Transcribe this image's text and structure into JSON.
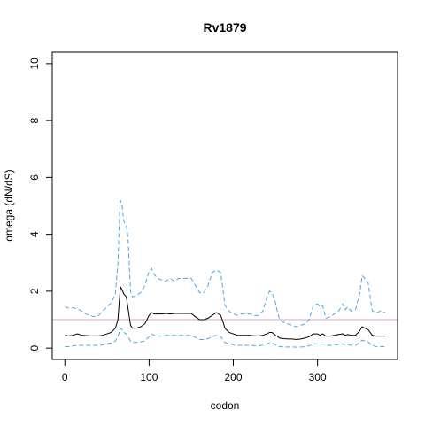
{
  "chart_data": {
    "type": "line",
    "title": "Rv1879",
    "xlabel": "codon",
    "ylabel": "omega (dN/dS)",
    "xlim": [
      -15,
      395
    ],
    "ylim": [
      -0.4,
      10.4
    ],
    "x_ticks": [
      0,
      100,
      200,
      300
    ],
    "y_ticks": [
      0,
      2,
      4,
      6,
      8,
      10
    ],
    "grid": false,
    "reference_line": {
      "y": 1,
      "color": "#d8a0c8"
    },
    "series": [
      {
        "style": "dashed",
        "color": "#4aa8e0",
        "points": [
          [
            0,
            1.45
          ],
          [
            5,
            1.4
          ],
          [
            10,
            1.42
          ],
          [
            15,
            1.38
          ],
          [
            20,
            1.3
          ],
          [
            25,
            1.2
          ],
          [
            30,
            1.15
          ],
          [
            35,
            1.1
          ],
          [
            40,
            1.15
          ],
          [
            45,
            1.3
          ],
          [
            50,
            1.45
          ],
          [
            55,
            1.6
          ],
          [
            60,
            1.9
          ],
          [
            63,
            3.0
          ],
          [
            65,
            4.8
          ],
          [
            66,
            5.2
          ],
          [
            68,
            5.0
          ],
          [
            70,
            4.45
          ],
          [
            73,
            4.3
          ],
          [
            75,
            3.9
          ],
          [
            78,
            2.0
          ],
          [
            80,
            1.8
          ],
          [
            85,
            1.85
          ],
          [
            90,
            1.95
          ],
          [
            95,
            2.2
          ],
          [
            100,
            2.7
          ],
          [
            103,
            2.8
          ],
          [
            106,
            2.6
          ],
          [
            110,
            2.45
          ],
          [
            115,
            2.4
          ],
          [
            120,
            2.35
          ],
          [
            125,
            2.45
          ],
          [
            130,
            2.35
          ],
          [
            135,
            2.45
          ],
          [
            140,
            2.45
          ],
          [
            145,
            2.45
          ],
          [
            150,
            2.45
          ],
          [
            155,
            2.2
          ],
          [
            160,
            1.95
          ],
          [
            165,
            1.95
          ],
          [
            170,
            2.2
          ],
          [
            175,
            2.65
          ],
          [
            180,
            2.75
          ],
          [
            185,
            2.65
          ],
          [
            188,
            2.0
          ],
          [
            190,
            1.5
          ],
          [
            195,
            1.3
          ],
          [
            200,
            1.2
          ],
          [
            205,
            1.15
          ],
          [
            210,
            1.2
          ],
          [
            215,
            1.2
          ],
          [
            220,
            1.2
          ],
          [
            225,
            1.15
          ],
          [
            230,
            1.15
          ],
          [
            235,
            1.3
          ],
          [
            240,
            1.8
          ],
          [
            243,
            2.0
          ],
          [
            246,
            1.95
          ],
          [
            250,
            1.6
          ],
          [
            253,
            1.2
          ],
          [
            255,
            1.0
          ],
          [
            260,
            0.9
          ],
          [
            265,
            0.85
          ],
          [
            270,
            0.8
          ],
          [
            275,
            0.75
          ],
          [
            280,
            0.8
          ],
          [
            285,
            0.85
          ],
          [
            290,
            1.0
          ],
          [
            295,
            1.5
          ],
          [
            300,
            1.55
          ],
          [
            303,
            1.45
          ],
          [
            306,
            1.5
          ],
          [
            310,
            1.05
          ],
          [
            315,
            1.1
          ],
          [
            320,
            1.2
          ],
          [
            325,
            1.3
          ],
          [
            330,
            1.55
          ],
          [
            333,
            1.35
          ],
          [
            336,
            1.45
          ],
          [
            340,
            1.3
          ],
          [
            345,
            1.35
          ],
          [
            350,
            1.9
          ],
          [
            353,
            2.55
          ],
          [
            356,
            2.45
          ],
          [
            360,
            2.3
          ],
          [
            365,
            1.3
          ],
          [
            370,
            1.25
          ],
          [
            375,
            1.3
          ],
          [
            380,
            1.25
          ]
        ]
      },
      {
        "style": "solid",
        "color": "#000000",
        "points": [
          [
            0,
            0.45
          ],
          [
            5,
            0.43
          ],
          [
            10,
            0.45
          ],
          [
            15,
            0.5
          ],
          [
            20,
            0.45
          ],
          [
            25,
            0.44
          ],
          [
            30,
            0.43
          ],
          [
            35,
            0.43
          ],
          [
            40,
            0.43
          ],
          [
            45,
            0.45
          ],
          [
            50,
            0.5
          ],
          [
            55,
            0.55
          ],
          [
            60,
            0.7
          ],
          [
            63,
            1.0
          ],
          [
            65,
            1.8
          ],
          [
            66,
            2.15
          ],
          [
            68,
            2.05
          ],
          [
            70,
            1.9
          ],
          [
            73,
            1.8
          ],
          [
            75,
            1.4
          ],
          [
            78,
            0.8
          ],
          [
            80,
            0.7
          ],
          [
            85,
            0.7
          ],
          [
            90,
            0.75
          ],
          [
            95,
            0.85
          ],
          [
            100,
            1.15
          ],
          [
            103,
            1.25
          ],
          [
            106,
            1.2
          ],
          [
            110,
            1.2
          ],
          [
            115,
            1.2
          ],
          [
            120,
            1.22
          ],
          [
            125,
            1.2
          ],
          [
            130,
            1.22
          ],
          [
            135,
            1.22
          ],
          [
            140,
            1.22
          ],
          [
            145,
            1.22
          ],
          [
            150,
            1.22
          ],
          [
            155,
            1.1
          ],
          [
            160,
            1.0
          ],
          [
            165,
            1.0
          ],
          [
            170,
            1.05
          ],
          [
            175,
            1.15
          ],
          [
            180,
            1.25
          ],
          [
            185,
            1.15
          ],
          [
            188,
            0.9
          ],
          [
            190,
            0.7
          ],
          [
            195,
            0.55
          ],
          [
            200,
            0.5
          ],
          [
            205,
            0.45
          ],
          [
            210,
            0.45
          ],
          [
            215,
            0.45
          ],
          [
            220,
            0.45
          ],
          [
            225,
            0.43
          ],
          [
            230,
            0.43
          ],
          [
            235,
            0.45
          ],
          [
            240,
            0.5
          ],
          [
            243,
            0.55
          ],
          [
            246,
            0.55
          ],
          [
            250,
            0.45
          ],
          [
            253,
            0.4
          ],
          [
            255,
            0.35
          ],
          [
            260,
            0.33
          ],
          [
            265,
            0.32
          ],
          [
            270,
            0.32
          ],
          [
            275,
            0.3
          ],
          [
            280,
            0.32
          ],
          [
            285,
            0.35
          ],
          [
            290,
            0.4
          ],
          [
            295,
            0.5
          ],
          [
            300,
            0.5
          ],
          [
            303,
            0.45
          ],
          [
            306,
            0.5
          ],
          [
            310,
            0.42
          ],
          [
            315,
            0.42
          ],
          [
            320,
            0.45
          ],
          [
            325,
            0.48
          ],
          [
            330,
            0.5
          ],
          [
            333,
            0.45
          ],
          [
            336,
            0.48
          ],
          [
            340,
            0.45
          ],
          [
            345,
            0.45
          ],
          [
            350,
            0.6
          ],
          [
            353,
            0.75
          ],
          [
            356,
            0.7
          ],
          [
            360,
            0.65
          ],
          [
            365,
            0.45
          ],
          [
            370,
            0.42
          ],
          [
            375,
            0.42
          ],
          [
            380,
            0.42
          ]
        ]
      },
      {
        "style": "dashed",
        "color": "#4aa8e0",
        "points": [
          [
            0,
            0.05
          ],
          [
            5,
            0.05
          ],
          [
            10,
            0.08
          ],
          [
            15,
            0.1
          ],
          [
            20,
            0.1
          ],
          [
            25,
            0.1
          ],
          [
            30,
            0.1
          ],
          [
            35,
            0.1
          ],
          [
            40,
            0.1
          ],
          [
            45,
            0.12
          ],
          [
            50,
            0.15
          ],
          [
            55,
            0.18
          ],
          [
            60,
            0.25
          ],
          [
            63,
            0.4
          ],
          [
            65,
            0.6
          ],
          [
            66,
            0.7
          ],
          [
            68,
            0.65
          ],
          [
            70,
            0.55
          ],
          [
            73,
            0.5
          ],
          [
            75,
            0.4
          ],
          [
            78,
            0.25
          ],
          [
            80,
            0.2
          ],
          [
            85,
            0.2
          ],
          [
            90,
            0.22
          ],
          [
            95,
            0.25
          ],
          [
            100,
            0.4
          ],
          [
            103,
            0.5
          ],
          [
            106,
            0.45
          ],
          [
            110,
            0.42
          ],
          [
            115,
            0.42
          ],
          [
            120,
            0.45
          ],
          [
            125,
            0.45
          ],
          [
            130,
            0.45
          ],
          [
            135,
            0.45
          ],
          [
            140,
            0.45
          ],
          [
            145,
            0.45
          ],
          [
            150,
            0.45
          ],
          [
            155,
            0.38
          ],
          [
            160,
            0.3
          ],
          [
            165,
            0.3
          ],
          [
            170,
            0.33
          ],
          [
            175,
            0.4
          ],
          [
            180,
            0.45
          ],
          [
            185,
            0.4
          ],
          [
            188,
            0.28
          ],
          [
            190,
            0.2
          ],
          [
            195,
            0.15
          ],
          [
            200,
            0.12
          ],
          [
            205,
            0.1
          ],
          [
            210,
            0.1
          ],
          [
            215,
            0.1
          ],
          [
            220,
            0.1
          ],
          [
            225,
            0.08
          ],
          [
            230,
            0.08
          ],
          [
            235,
            0.1
          ],
          [
            240,
            0.15
          ],
          [
            243,
            0.18
          ],
          [
            246,
            0.18
          ],
          [
            250,
            0.12
          ],
          [
            253,
            0.08
          ],
          [
            255,
            0.05
          ],
          [
            260,
            0.04
          ],
          [
            265,
            0.04
          ],
          [
            270,
            0.04
          ],
          [
            275,
            0.03
          ],
          [
            280,
            0.04
          ],
          [
            285,
            0.05
          ],
          [
            290,
            0.08
          ],
          [
            295,
            0.15
          ],
          [
            300,
            0.15
          ],
          [
            303,
            0.12
          ],
          [
            306,
            0.15
          ],
          [
            310,
            0.1
          ],
          [
            315,
            0.1
          ],
          [
            320,
            0.12
          ],
          [
            325,
            0.12
          ],
          [
            330,
            0.15
          ],
          [
            333,
            0.12
          ],
          [
            336,
            0.12
          ],
          [
            340,
            0.1
          ],
          [
            345,
            0.1
          ],
          [
            350,
            0.2
          ],
          [
            353,
            0.28
          ],
          [
            356,
            0.25
          ],
          [
            360,
            0.22
          ],
          [
            365,
            0.1
          ],
          [
            370,
            0.05
          ],
          [
            375,
            0.05
          ],
          [
            380,
            0.05
          ]
        ]
      }
    ]
  }
}
